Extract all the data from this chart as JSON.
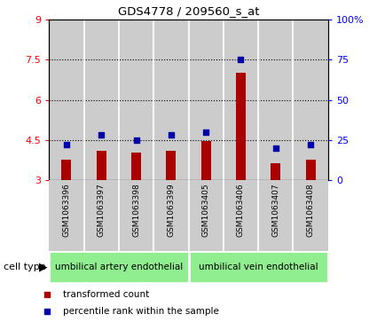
{
  "title": "GDS4778 / 209560_s_at",
  "samples": [
    "GSM1063396",
    "GSM1063397",
    "GSM1063398",
    "GSM1063399",
    "GSM1063405",
    "GSM1063406",
    "GSM1063407",
    "GSM1063408"
  ],
  "transformed_count": [
    3.78,
    4.1,
    4.05,
    4.1,
    4.48,
    7.0,
    3.65,
    3.78
  ],
  "percentile_rank": [
    22,
    28,
    25,
    28,
    30,
    75,
    20,
    22
  ],
  "cell_types": [
    {
      "label": "umbilical artery endothelial",
      "start": 0,
      "end": 4,
      "color": "#90EE90"
    },
    {
      "label": "umbilical vein endothelial",
      "start": 4,
      "end": 8,
      "color": "#90EE90"
    }
  ],
  "ylim_left": [
    3,
    9
  ],
  "ylim_right": [
    0,
    100
  ],
  "yticks_left": [
    3,
    4.5,
    6,
    7.5,
    9
  ],
  "ytick_labels_left": [
    "3",
    "4.5",
    "6",
    "7.5",
    "9"
  ],
  "yticks_right": [
    0,
    25,
    50,
    75,
    100
  ],
  "ytick_labels_right": [
    "0",
    "25",
    "50",
    "75",
    "100%"
  ],
  "bar_color": "#AA0000",
  "dot_color": "#0000AA",
  "col_bg_color": "#cccccc",
  "plot_bg_color": "#ffffff",
  "legend_items": [
    {
      "label": "transformed count",
      "color": "#AA0000"
    },
    {
      "label": "percentile rank within the sample",
      "color": "#0000AA"
    }
  ],
  "cell_type_label": "cell type"
}
